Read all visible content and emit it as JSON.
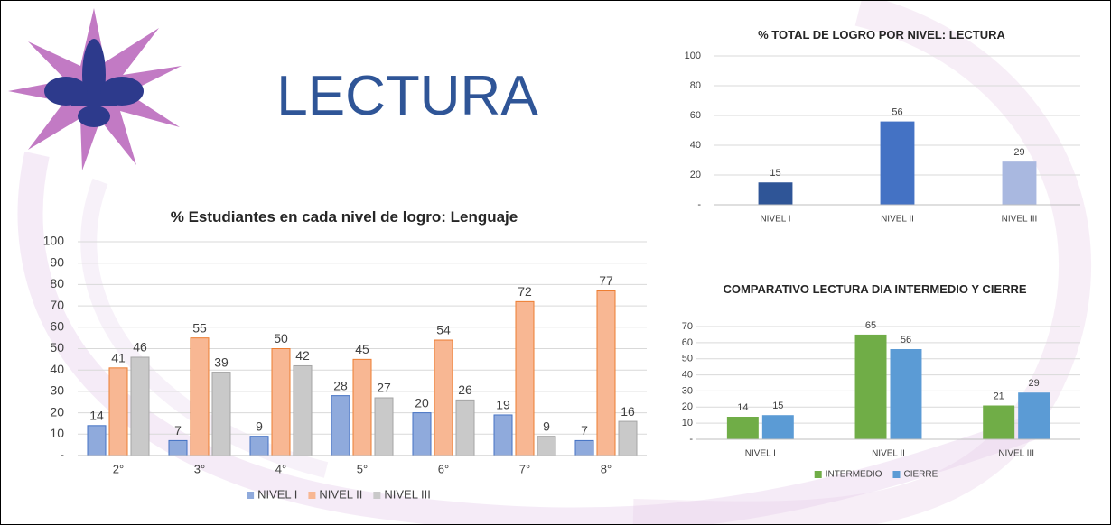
{
  "title": "LECTURA",
  "chart_data": [
    {
      "type": "bar",
      "title": "% Estudiantes en cada nivel de logro: Lenguaje",
      "categories": [
        "2°",
        "3°",
        "4°",
        "5°",
        "6°",
        "7°",
        "8°"
      ],
      "series": [
        {
          "name": "NIVEL I",
          "color": "#8faadc",
          "values": [
            14,
            7,
            9,
            28,
            20,
            19,
            7
          ]
        },
        {
          "name": "NIVEL II",
          "color": "#f8b793",
          "values": [
            41,
            55,
            50,
            45,
            54,
            72,
            77
          ]
        },
        {
          "name": "NIVEL III",
          "color": "#c9c9c9",
          "values": [
            46,
            39,
            42,
            27,
            26,
            9,
            16
          ]
        }
      ],
      "ylim": [
        0,
        100
      ],
      "yticks": [
        {
          "value": 0,
          "label": "-"
        },
        10,
        20,
        30,
        40,
        50,
        60,
        70,
        80,
        90,
        100
      ],
      "grid": true,
      "legend": "bottom"
    },
    {
      "type": "bar",
      "title": "% TOTAL DE LOGRO POR NIVEL: LECTURA",
      "categories": [
        "NIVEL I",
        "NIVEL II",
        "NIVEL III"
      ],
      "values": [
        15,
        56,
        29
      ],
      "colors": [
        "#2f5597",
        "#4472c4",
        "#a9b8e0"
      ],
      "ylim": [
        0,
        100
      ],
      "yticks": [
        {
          "value": 0,
          "label": "-"
        },
        20,
        40,
        60,
        80,
        100
      ],
      "grid": true
    },
    {
      "type": "bar",
      "title": "COMPARATIVO LECTURA DIA INTERMEDIO Y CIERRE",
      "categories": [
        "NIVEL I",
        "NIVEL II",
        "NIVEL III"
      ],
      "series": [
        {
          "name": "INTERMEDIO",
          "color": "#70ad47",
          "values": [
            14,
            65,
            21
          ]
        },
        {
          "name": "CIERRE",
          "color": "#5b9bd5",
          "values": [
            15,
            56,
            29
          ]
        }
      ],
      "ylim": [
        0,
        70
      ],
      "yticks": [
        {
          "value": 0,
          "label": "-"
        },
        10,
        20,
        30,
        40,
        50,
        60,
        70
      ],
      "grid": true,
      "legend": "bottom"
    }
  ]
}
